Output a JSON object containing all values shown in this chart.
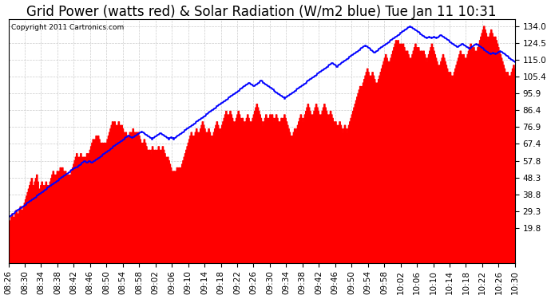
{
  "title": "Grid Power (watts red) & Solar Radiation (W/m2 blue) Tue Jan 11 10:31",
  "copyright": "Copyright 2011 Cartronics.com",
  "yticks": [
    19.8,
    29.3,
    38.8,
    48.3,
    57.8,
    67.4,
    76.9,
    86.4,
    95.9,
    105.4,
    115.0,
    124.5,
    134.0
  ],
  "ylim": [
    0,
    138
  ],
  "xlabels": [
    "08:26",
    "08:30",
    "08:34",
    "08:38",
    "08:42",
    "08:46",
    "08:50",
    "08:54",
    "08:58",
    "09:02",
    "09:06",
    "09:10",
    "09:14",
    "09:18",
    "09:22",
    "09:26",
    "09:30",
    "09:34",
    "09:38",
    "09:42",
    "09:46",
    "09:50",
    "09:54",
    "09:58",
    "10:02",
    "10:06",
    "10:10",
    "10:14",
    "10:18",
    "10:22",
    "10:26",
    "10:30"
  ],
  "background_color": "#ffffff",
  "grid_color": "#cccccc",
  "bar_color": "#ff0000",
  "line_color": "#0000ff",
  "title_fontsize": 12,
  "copyright_fontsize": 6.5,
  "tick_fontsize": 7.5,
  "red_data": [
    22,
    24,
    26,
    28,
    24,
    26,
    28,
    30,
    26,
    28,
    30,
    32,
    28,
    30,
    32,
    34,
    36,
    38,
    40,
    42,
    44,
    46,
    48,
    42,
    44,
    46,
    48,
    50,
    46,
    42,
    38,
    44,
    46,
    44,
    42,
    44,
    46,
    44,
    42,
    44,
    46,
    48,
    50,
    52,
    50,
    48,
    50,
    52,
    50,
    52,
    54,
    52,
    54,
    52,
    50,
    52,
    50,
    48,
    50,
    48,
    50,
    52,
    54,
    56,
    58,
    60,
    62,
    60,
    58,
    60,
    62,
    60,
    58,
    60,
    58,
    60,
    62,
    60,
    62,
    64,
    66,
    68,
    70,
    68,
    70,
    72,
    70,
    72,
    70,
    68,
    66,
    68,
    66,
    68,
    66,
    68,
    70,
    72,
    74,
    76,
    78,
    80,
    78,
    80,
    78,
    76,
    78,
    80,
    78,
    76,
    78,
    76,
    74,
    72,
    74,
    72,
    70,
    72,
    74,
    72,
    74,
    76,
    74,
    72,
    74,
    72,
    74,
    72,
    70,
    68,
    66,
    68,
    70,
    68,
    66,
    64,
    62,
    64,
    62,
    64,
    66,
    64,
    62,
    64,
    62,
    64,
    66,
    64,
    62,
    64,
    66,
    64,
    62,
    60,
    58,
    60,
    58,
    56,
    54,
    52,
    50,
    52,
    50,
    52,
    54,
    52,
    54,
    52,
    54,
    56,
    58,
    60,
    62,
    64,
    66,
    68,
    70,
    72,
    74,
    72,
    70,
    72,
    74,
    76,
    74,
    72,
    74,
    76,
    78,
    80,
    78,
    76,
    74,
    72,
    74,
    76,
    74,
    72,
    70,
    72,
    74,
    76,
    78,
    80,
    78,
    76,
    74,
    76,
    78,
    80,
    82,
    84,
    86,
    84,
    82,
    84,
    86,
    84,
    82,
    80,
    78,
    80,
    82,
    84,
    86,
    84,
    82,
    80,
    82,
    80,
    78,
    80,
    82,
    84,
    82,
    80,
    78,
    80,
    82,
    84,
    86,
    88,
    90,
    88,
    86,
    84,
    82,
    80,
    78,
    80,
    82,
    84,
    82,
    80,
    82,
    84,
    82,
    84,
    82,
    80,
    82,
    84,
    82,
    80,
    78,
    80,
    82,
    80,
    82,
    84,
    82,
    80,
    78,
    76,
    74,
    72,
    70,
    72,
    74,
    76,
    74,
    76,
    78,
    80,
    82,
    84,
    82,
    80,
    82,
    84,
    86,
    88,
    90,
    88,
    86,
    84,
    82,
    84,
    86,
    88,
    90,
    88,
    86,
    84,
    82,
    84,
    86,
    88,
    90,
    88,
    86,
    84,
    82,
    84,
    86,
    84,
    82,
    80,
    78,
    80,
    78,
    76,
    78,
    80,
    78,
    76,
    74,
    76,
    78,
    76,
    74,
    76,
    78,
    80,
    82,
    84,
    86,
    88,
    90,
    92,
    94,
    96,
    98,
    100,
    98,
    100,
    102,
    104,
    106,
    108,
    110,
    108,
    106,
    104,
    106,
    108,
    106,
    104,
    102,
    100,
    102,
    104,
    106,
    108,
    110,
    112,
    114,
    116,
    118,
    116,
    114,
    112,
    114,
    116,
    118,
    120,
    122,
    124,
    126,
    124,
    126,
    124,
    122,
    124,
    122,
    124,
    122,
    120,
    118,
    120,
    118,
    116,
    114,
    116,
    118,
    120,
    122,
    124,
    122,
    120,
    122,
    120,
    118,
    120,
    118,
    120,
    118,
    116,
    114,
    116,
    118,
    120,
    122,
    124,
    122,
    120,
    118,
    116,
    114,
    112,
    110,
    112,
    114,
    116,
    118,
    116,
    114,
    112,
    110,
    108,
    106,
    108,
    106,
    104,
    106,
    108,
    110,
    112,
    114,
    116,
    118,
    120,
    118,
    116,
    118,
    116,
    114,
    116,
    118,
    120,
    122,
    124,
    122,
    120,
    122,
    120,
    118,
    120,
    122,
    124,
    126,
    128,
    130,
    132,
    134,
    132,
    130,
    128,
    126,
    128,
    130,
    132,
    130,
    128,
    126,
    128,
    126,
    124,
    122,
    120,
    118,
    116,
    114,
    112,
    110,
    108,
    106,
    108,
    106,
    104,
    106,
    108,
    110,
    112,
    110,
    108
  ],
  "blue_data": [
    26,
    26.5,
    27,
    27.5,
    28,
    28.5,
    29,
    29.5,
    30,
    30.5,
    31,
    31.5,
    32,
    32.5,
    33,
    33.5,
    34,
    34.5,
    35,
    35.5,
    36,
    36.5,
    37,
    37.5,
    38,
    38.5,
    39,
    39.5,
    40,
    40.5,
    41,
    41.5,
    42,
    42.5,
    43,
    43.5,
    44,
    44.5,
    45,
    45.5,
    46,
    46.5,
    47,
    47.5,
    48,
    48.5,
    49,
    49.5,
    50,
    50.5,
    51,
    51.5,
    52,
    52.5,
    53,
    53.5,
    54,
    54,
    54.5,
    55,
    55.5,
    56,
    56.5,
    57,
    57.5,
    57,
    56.5,
    57,
    57.5,
    57,
    56.5,
    57,
    57.5,
    58,
    58.5,
    59,
    59.5,
    60,
    60.5,
    61,
    61.5,
    62,
    62.5,
    63,
    63.5,
    64,
    64.5,
    65,
    65.5,
    66,
    66.5,
    67,
    67.5,
    68,
    68.5,
    69,
    69.5,
    70,
    70.5,
    71,
    71.5,
    72,
    71.5,
    71,
    70.5,
    71,
    71.5,
    72,
    72.5,
    73,
    73.5,
    74,
    74.5,
    74,
    73.5,
    73,
    72.5,
    72,
    71.5,
    71,
    70.5,
    70,
    70.5,
    71,
    71.5,
    72,
    72.5,
    73,
    73.5,
    73,
    72.5,
    72,
    71.5,
    71,
    70.5,
    70,
    70.5,
    71,
    70.5,
    70,
    70.5,
    71,
    71.5,
    72,
    72.5,
    73,
    73.5,
    74,
    74.5,
    75,
    75.5,
    76,
    76.5,
    77,
    77.5,
    78,
    78.5,
    79,
    79.5,
    80,
    80.5,
    81,
    81.5,
    82,
    82.5,
    83,
    83.5,
    84,
    84.5,
    85,
    85.5,
    86,
    86.5,
    87,
    87.5,
    88,
    88.5,
    89,
    89.5,
    90,
    90.5,
    91,
    91.5,
    92,
    92.5,
    93,
    93.5,
    94,
    94.5,
    95,
    95.5,
    96,
    96.5,
    97,
    97.5,
    98,
    98.5,
    99,
    99.5,
    100,
    100.5,
    101,
    101.5,
    102,
    101.5,
    101,
    100.5,
    100,
    100.5,
    101,
    101.5,
    102,
    102.5,
    103,
    102.5,
    102,
    101.5,
    101,
    100.5,
    100,
    99.5,
    99,
    98.5,
    98,
    97.5,
    97,
    96.5,
    96,
    95.5,
    95,
    94.5,
    94,
    93.5,
    93,
    93.5,
    94,
    94.5,
    95,
    95.5,
    96,
    96.5,
    97,
    97.5,
    98,
    98.5,
    99,
    99.5,
    100,
    100.5,
    101,
    101.5,
    102,
    102.5,
    103,
    103.5,
    104,
    104.5,
    105,
    105.5,
    106,
    106.5,
    107,
    107.5,
    108,
    108.5,
    109,
    109.5,
    110,
    110.5,
    111,
    111.5,
    112,
    112.5,
    113,
    112.5,
    112,
    111.5,
    111,
    111.5,
    112,
    112.5,
    113,
    113.5,
    114,
    114.5,
    115,
    115.5,
    116,
    116.5,
    117,
    117.5,
    118,
    118.5,
    119,
    119.5,
    120,
    120.5,
    121,
    121.5,
    122,
    122.5,
    123,
    122.5,
    122,
    121.5,
    121,
    120.5,
    120,
    119.5,
    119,
    119.5,
    120,
    120.5,
    121,
    121.5,
    122,
    122.5,
    123,
    123.5,
    124,
    124.5,
    125,
    125.5,
    126,
    126.5,
    127,
    127.5,
    128,
    128.5,
    129,
    129.5,
    130,
    130.5,
    131,
    131.5,
    132,
    132.5,
    133,
    133.5,
    134,
    133.5,
    133,
    132.5,
    132,
    131.5,
    131,
    130.5,
    130,
    129.5,
    129,
    128.5,
    128,
    127.5,
    127,
    127.5,
    128,
    127.5,
    127,
    127.5,
    128,
    127.5,
    127,
    127.5,
    128,
    128.5,
    129,
    128.5,
    128,
    127.5,
    127,
    126.5,
    126,
    125.5,
    125,
    124.5,
    124,
    123.5,
    123,
    122.5,
    122,
    122.5,
    123,
    123.5,
    124,
    123.5,
    123,
    122.5,
    122,
    121.5,
    121,
    121.5,
    122,
    122.5,
    123,
    123.5,
    124,
    123.5,
    123,
    122.5,
    122,
    121.5,
    121,
    120.5,
    120,
    119.5,
    119,
    118.5,
    118,
    118.5,
    119,
    118.5,
    118,
    118.5,
    119,
    119.5,
    120,
    119.5,
    119,
    118.5,
    118,
    117.5,
    117,
    116.5,
    116,
    115.5,
    115,
    114.5,
    114,
    113.5
  ]
}
